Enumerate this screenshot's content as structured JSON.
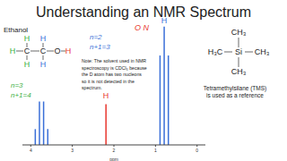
{
  "chart_data": {
    "type": "bar",
    "title": "Understanding an NMR Spectrum",
    "x_label": "ppm",
    "x": [
      3.9,
      3.8,
      3.7,
      3.6,
      2.2,
      0.9,
      0.8,
      0.7
    ],
    "values": [
      12,
      33,
      33,
      12,
      31,
      68,
      90,
      68
    ],
    "colors": [
      "#3a6fd8",
      "#3a6fd8",
      "#3a6fd8",
      "#3a6fd8",
      "#e8362e",
      "#3a6fd8",
      "#3a6fd8",
      "#3a6fd8"
    ],
    "xlim": [
      4.2,
      -0.2
    ],
    "xticks": [
      4,
      3,
      2,
      1,
      0
    ],
    "ylim": [
      0,
      100
    ],
    "tick_labels": "x",
    "annotations": [
      {
        "text": "O N",
        "color": "#e8362e"
      },
      {
        "text": "n=2",
        "color": "#3a6fd8"
      },
      {
        "text": "n+1=3",
        "color": "#3a6fd8"
      },
      {
        "text": "n=3",
        "color": "#3cb043"
      },
      {
        "text": "n+1=4",
        "color": "#3cb043"
      },
      {
        "text": "H",
        "color": "#e8362e"
      },
      {
        "text": "H",
        "color": "#3a6fd8"
      }
    ]
  },
  "ethanol": {
    "name": "Ethanol",
    "atoms": [
      {
        "text": "H",
        "color": "#3cb043"
      },
      {
        "text": "C",
        "color": "#222222"
      },
      {
        "text": "C",
        "color": "#222222"
      },
      {
        "text": "O",
        "color": "#222222"
      },
      {
        "text": "H",
        "color": "#e8362e"
      },
      {
        "text": "H",
        "color": "#3cb043"
      },
      {
        "text": "H",
        "color": "#3a6fd8"
      },
      {
        "text": "H",
        "color": "#3cb043"
      },
      {
        "text": "H",
        "color": "#3a6fd8"
      }
    ]
  },
  "note": [
    "Note: The solvent used in NMR",
    "spectroscopy is CDCl₃ because",
    "the D atom has two nucleons",
    "so it is not detected in the",
    "spectrum."
  ],
  "tms": {
    "groups": [
      "CH₃",
      "H₃C",
      "Si",
      "CH₃",
      "CH₃"
    ],
    "caption": [
      "Tetramethylsilane (TMS)",
      "is used as a reference"
    ]
  }
}
